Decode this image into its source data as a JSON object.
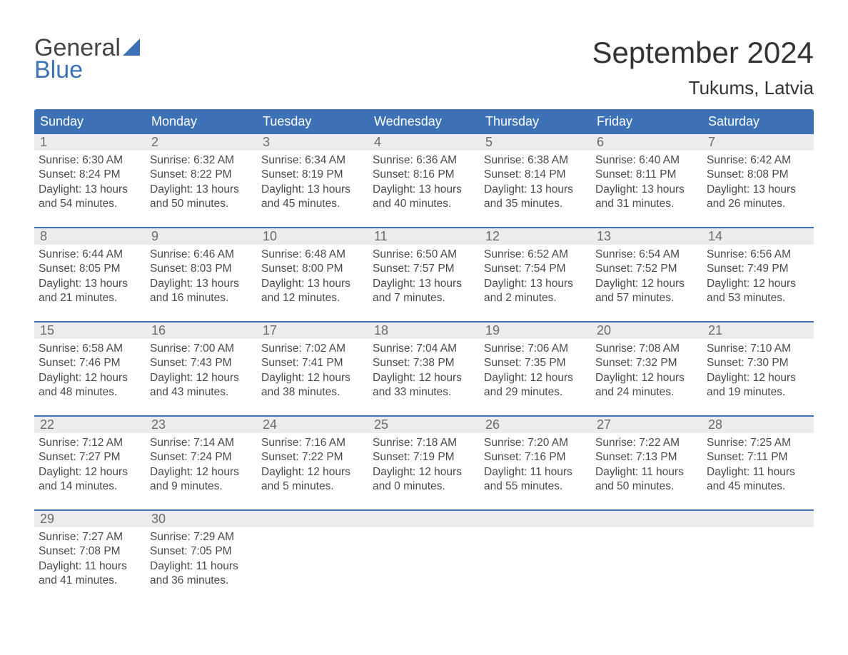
{
  "brand": {
    "line1": "General",
    "line2": "Blue",
    "color_primary": "#3c72b5"
  },
  "title": "September 2024",
  "location": "Tukums, Latvia",
  "colors": {
    "header_bg": "#3c72b5",
    "header_text": "#ffffff",
    "daynum_bg": "#ececec",
    "daynum_text": "#6b6b6b",
    "body_text": "#4a4a4a",
    "week_divider": "#3c72b5",
    "page_bg": "#ffffff"
  },
  "weekdays": [
    "Sunday",
    "Monday",
    "Tuesday",
    "Wednesday",
    "Thursday",
    "Friday",
    "Saturday"
  ],
  "days": [
    {
      "n": 1,
      "sunrise": "6:30 AM",
      "sunset": "8:24 PM",
      "daylight": "13 hours and 54 minutes."
    },
    {
      "n": 2,
      "sunrise": "6:32 AM",
      "sunset": "8:22 PM",
      "daylight": "13 hours and 50 minutes."
    },
    {
      "n": 3,
      "sunrise": "6:34 AM",
      "sunset": "8:19 PM",
      "daylight": "13 hours and 45 minutes."
    },
    {
      "n": 4,
      "sunrise": "6:36 AM",
      "sunset": "8:16 PM",
      "daylight": "13 hours and 40 minutes."
    },
    {
      "n": 5,
      "sunrise": "6:38 AM",
      "sunset": "8:14 PM",
      "daylight": "13 hours and 35 minutes."
    },
    {
      "n": 6,
      "sunrise": "6:40 AM",
      "sunset": "8:11 PM",
      "daylight": "13 hours and 31 minutes."
    },
    {
      "n": 7,
      "sunrise": "6:42 AM",
      "sunset": "8:08 PM",
      "daylight": "13 hours and 26 minutes."
    },
    {
      "n": 8,
      "sunrise": "6:44 AM",
      "sunset": "8:05 PM",
      "daylight": "13 hours and 21 minutes."
    },
    {
      "n": 9,
      "sunrise": "6:46 AM",
      "sunset": "8:03 PM",
      "daylight": "13 hours and 16 minutes."
    },
    {
      "n": 10,
      "sunrise": "6:48 AM",
      "sunset": "8:00 PM",
      "daylight": "13 hours and 12 minutes."
    },
    {
      "n": 11,
      "sunrise": "6:50 AM",
      "sunset": "7:57 PM",
      "daylight": "13 hours and 7 minutes."
    },
    {
      "n": 12,
      "sunrise": "6:52 AM",
      "sunset": "7:54 PM",
      "daylight": "13 hours and 2 minutes."
    },
    {
      "n": 13,
      "sunrise": "6:54 AM",
      "sunset": "7:52 PM",
      "daylight": "12 hours and 57 minutes."
    },
    {
      "n": 14,
      "sunrise": "6:56 AM",
      "sunset": "7:49 PM",
      "daylight": "12 hours and 53 minutes."
    },
    {
      "n": 15,
      "sunrise": "6:58 AM",
      "sunset": "7:46 PM",
      "daylight": "12 hours and 48 minutes."
    },
    {
      "n": 16,
      "sunrise": "7:00 AM",
      "sunset": "7:43 PM",
      "daylight": "12 hours and 43 minutes."
    },
    {
      "n": 17,
      "sunrise": "7:02 AM",
      "sunset": "7:41 PM",
      "daylight": "12 hours and 38 minutes."
    },
    {
      "n": 18,
      "sunrise": "7:04 AM",
      "sunset": "7:38 PM",
      "daylight": "12 hours and 33 minutes."
    },
    {
      "n": 19,
      "sunrise": "7:06 AM",
      "sunset": "7:35 PM",
      "daylight": "12 hours and 29 minutes."
    },
    {
      "n": 20,
      "sunrise": "7:08 AM",
      "sunset": "7:32 PM",
      "daylight": "12 hours and 24 minutes."
    },
    {
      "n": 21,
      "sunrise": "7:10 AM",
      "sunset": "7:30 PM",
      "daylight": "12 hours and 19 minutes."
    },
    {
      "n": 22,
      "sunrise": "7:12 AM",
      "sunset": "7:27 PM",
      "daylight": "12 hours and 14 minutes."
    },
    {
      "n": 23,
      "sunrise": "7:14 AM",
      "sunset": "7:24 PM",
      "daylight": "12 hours and 9 minutes."
    },
    {
      "n": 24,
      "sunrise": "7:16 AM",
      "sunset": "7:22 PM",
      "daylight": "12 hours and 5 minutes."
    },
    {
      "n": 25,
      "sunrise": "7:18 AM",
      "sunset": "7:19 PM",
      "daylight": "12 hours and 0 minutes."
    },
    {
      "n": 26,
      "sunrise": "7:20 AM",
      "sunset": "7:16 PM",
      "daylight": "11 hours and 55 minutes."
    },
    {
      "n": 27,
      "sunrise": "7:22 AM",
      "sunset": "7:13 PM",
      "daylight": "11 hours and 50 minutes."
    },
    {
      "n": 28,
      "sunrise": "7:25 AM",
      "sunset": "7:11 PM",
      "daylight": "11 hours and 45 minutes."
    },
    {
      "n": 29,
      "sunrise": "7:27 AM",
      "sunset": "7:08 PM",
      "daylight": "11 hours and 41 minutes."
    },
    {
      "n": 30,
      "sunrise": "7:29 AM",
      "sunset": "7:05 PM",
      "daylight": "11 hours and 36 minutes."
    }
  ],
  "labels": {
    "sunrise": "Sunrise:",
    "sunset": "Sunset:",
    "daylight": "Daylight:"
  },
  "layout": {
    "start_weekday_index": 0,
    "total_cells": 35
  }
}
